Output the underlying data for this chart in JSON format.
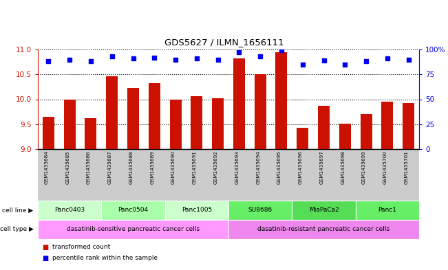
{
  "title": "GDS5627 / ILMN_1656111",
  "samples": [
    "GSM1435684",
    "GSM1435685",
    "GSM1435686",
    "GSM1435687",
    "GSM1435688",
    "GSM1435689",
    "GSM1435690",
    "GSM1435691",
    "GSM1435692",
    "GSM1435693",
    "GSM1435694",
    "GSM1435695",
    "GSM1435696",
    "GSM1435697",
    "GSM1435698",
    "GSM1435699",
    "GSM1435700",
    "GSM1435701"
  ],
  "bar_values": [
    9.65,
    10.0,
    9.62,
    10.46,
    10.23,
    10.32,
    9.99,
    10.06,
    10.02,
    10.82,
    10.5,
    10.94,
    9.43,
    9.87,
    9.51,
    9.7,
    9.95,
    9.92
  ],
  "percentile_values": [
    88,
    90,
    88,
    93,
    91,
    92,
    90,
    91,
    90,
    97,
    93,
    99,
    85,
    89,
    85,
    88,
    91,
    90
  ],
  "ylim_left": [
    9,
    11
  ],
  "ylim_right": [
    0,
    100
  ],
  "yticks_left": [
    9.0,
    9.5,
    10.0,
    10.5,
    11.0
  ],
  "yticks_right": [
    0,
    25,
    50,
    75,
    100
  ],
  "bar_color": "#cc1100",
  "percentile_color": "#0000ee",
  "grid_color": "#000000",
  "cell_lines": [
    {
      "label": "Panc0403",
      "start": 0,
      "end": 3,
      "color": "#ccffcc"
    },
    {
      "label": "Panc0504",
      "start": 3,
      "end": 6,
      "color": "#aaffaa"
    },
    {
      "label": "Panc1005",
      "start": 6,
      "end": 9,
      "color": "#ccffcc"
    },
    {
      "label": "SU8686",
      "start": 9,
      "end": 12,
      "color": "#66ee66"
    },
    {
      "label": "MiaPaCa2",
      "start": 12,
      "end": 15,
      "color": "#55dd55"
    },
    {
      "label": "Panc1",
      "start": 15,
      "end": 18,
      "color": "#66ee66"
    }
  ],
  "cell_types": [
    {
      "label": "dasatinib-sensitive pancreatic cancer cells",
      "start": 0,
      "end": 9,
      "color": "#ff99ff"
    },
    {
      "label": "dasatinib-resistant pancreatic cancer cells",
      "start": 9,
      "end": 18,
      "color": "#ee88ee"
    }
  ],
  "tick_bg_color": "#cccccc",
  "fig_width": 6.51,
  "fig_height": 3.93,
  "dpi": 100
}
